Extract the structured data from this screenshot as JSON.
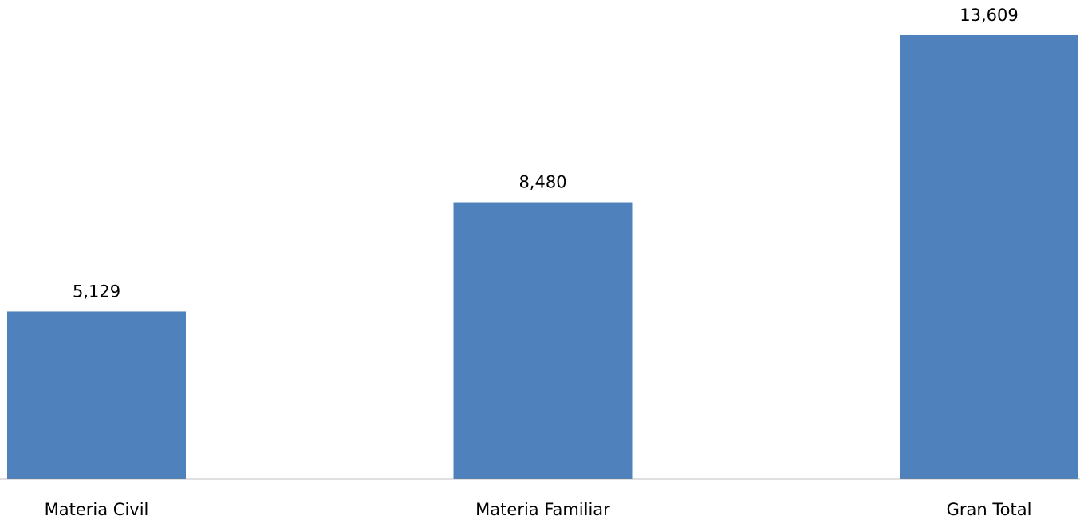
{
  "chart_data": {
    "type": "bar",
    "categories": [
      "Materia Civil",
      "Materia Familiar",
      "Gran Total"
    ],
    "values": [
      5129,
      8480,
      13609
    ],
    "value_labels": [
      "5,129",
      "8,480",
      "13,609"
    ],
    "title": "",
    "xlabel": "",
    "ylabel": "",
    "ylim": [
      0,
      14000
    ],
    "grid": false,
    "legend": "none",
    "bar_color": "#4F81BD",
    "axis_color": "#868686"
  }
}
